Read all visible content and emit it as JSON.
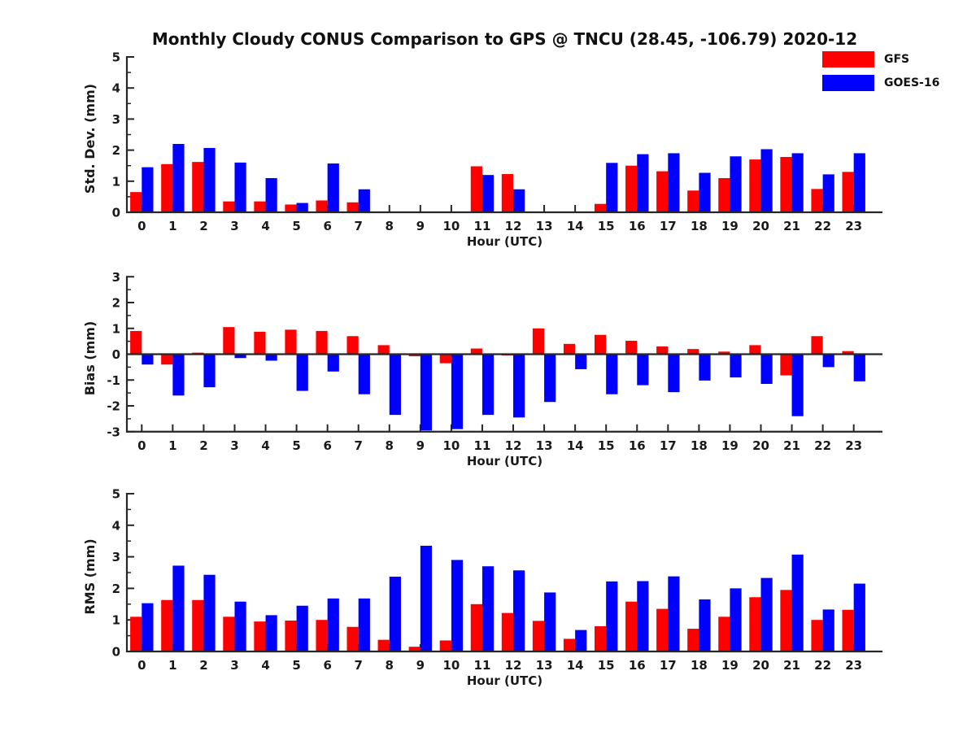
{
  "title": "Monthly Cloudy CONUS Comparison to GPS @ TNCU (28.45, -106.79) 2020-12",
  "legend": {
    "position": "top-right",
    "items": [
      {
        "label": "GFS",
        "color": "#ff0000"
      },
      {
        "label": "GOES-16",
        "color": "#0000ff"
      }
    ]
  },
  "chart_data": [
    {
      "type": "bar",
      "ylabel": "Std. Dev. (mm)",
      "xlabel": "Hour (UTC)",
      "ylim": [
        0,
        5
      ],
      "yticks": [
        0,
        1,
        2,
        3,
        4,
        5
      ],
      "grid": false,
      "categories": [
        0,
        1,
        2,
        3,
        4,
        5,
        6,
        7,
        8,
        9,
        10,
        11,
        12,
        13,
        14,
        15,
        16,
        17,
        18,
        19,
        20,
        21,
        22,
        23
      ],
      "series": [
        {
          "name": "GFS",
          "color": "#ff0000",
          "values": [
            0.65,
            1.55,
            1.62,
            0.35,
            0.35,
            0.25,
            0.38,
            0.32,
            0,
            0,
            0,
            1.48,
            1.23,
            0,
            0,
            0.27,
            1.5,
            1.32,
            0.7,
            1.1,
            1.7,
            1.78,
            0.75,
            1.3
          ]
        },
        {
          "name": "GOES-16",
          "color": "#0000ff",
          "values": [
            1.45,
            2.2,
            2.07,
            1.6,
            1.1,
            0.3,
            1.57,
            0.74,
            0,
            0,
            0,
            1.2,
            0.74,
            0,
            0,
            1.59,
            1.87,
            1.9,
            1.27,
            1.8,
            2.03,
            1.9,
            1.22,
            1.9
          ]
        }
      ]
    },
    {
      "type": "bar",
      "ylabel": "Bias (mm)",
      "xlabel": "Hour (UTC)",
      "ylim": [
        -3,
        3
      ],
      "yticks": [
        -3,
        -2,
        -1,
        0,
        1,
        2,
        3
      ],
      "grid": false,
      "categories": [
        0,
        1,
        2,
        3,
        4,
        5,
        6,
        7,
        8,
        9,
        10,
        11,
        12,
        13,
        14,
        15,
        16,
        17,
        18,
        19,
        20,
        21,
        22,
        23
      ],
      "series": [
        {
          "name": "GFS",
          "color": "#ff0000",
          "values": [
            0.9,
            -0.4,
            0.06,
            1.05,
            0.87,
            0.95,
            0.9,
            0.7,
            0.35,
            -0.08,
            -0.35,
            0.22,
            -0.05,
            1.0,
            0.4,
            0.75,
            0.52,
            0.3,
            0.2,
            0.1,
            0.35,
            -0.82,
            0.7,
            0.12
          ]
        },
        {
          "name": "GOES-16",
          "color": "#0000ff",
          "values": [
            -0.4,
            -1.6,
            -1.28,
            -0.15,
            -0.25,
            -1.42,
            -0.67,
            -1.55,
            -2.35,
            -2.95,
            -2.9,
            -2.35,
            -2.45,
            -1.85,
            -0.58,
            -1.55,
            -1.2,
            -1.47,
            -1.02,
            -0.9,
            -1.15,
            -2.4,
            -0.5,
            -1.05
          ]
        }
      ]
    },
    {
      "type": "bar",
      "ylabel": "RMS (mm)",
      "xlabel": "Hour (UTC)",
      "ylim": [
        0,
        5
      ],
      "yticks": [
        0,
        1,
        2,
        3,
        4,
        5
      ],
      "grid": false,
      "categories": [
        0,
        1,
        2,
        3,
        4,
        5,
        6,
        7,
        8,
        9,
        10,
        11,
        12,
        13,
        14,
        15,
        16,
        17,
        18,
        19,
        20,
        21,
        22,
        23
      ],
      "series": [
        {
          "name": "GFS",
          "color": "#ff0000",
          "values": [
            1.1,
            1.63,
            1.63,
            1.1,
            0.95,
            0.98,
            1.0,
            0.78,
            0.37,
            0.15,
            0.35,
            1.5,
            1.22,
            0.97,
            0.4,
            0.8,
            1.58,
            1.35,
            0.72,
            1.1,
            1.72,
            1.95,
            1.0,
            1.32
          ]
        },
        {
          "name": "GOES-16",
          "color": "#0000ff",
          "values": [
            1.53,
            2.72,
            2.43,
            1.58,
            1.15,
            1.45,
            1.68,
            1.68,
            2.37,
            3.35,
            2.9,
            2.7,
            2.57,
            1.87,
            0.68,
            2.22,
            2.23,
            2.38,
            1.65,
            2.0,
            2.33,
            3.07,
            1.33,
            2.15
          ]
        }
      ]
    }
  ]
}
